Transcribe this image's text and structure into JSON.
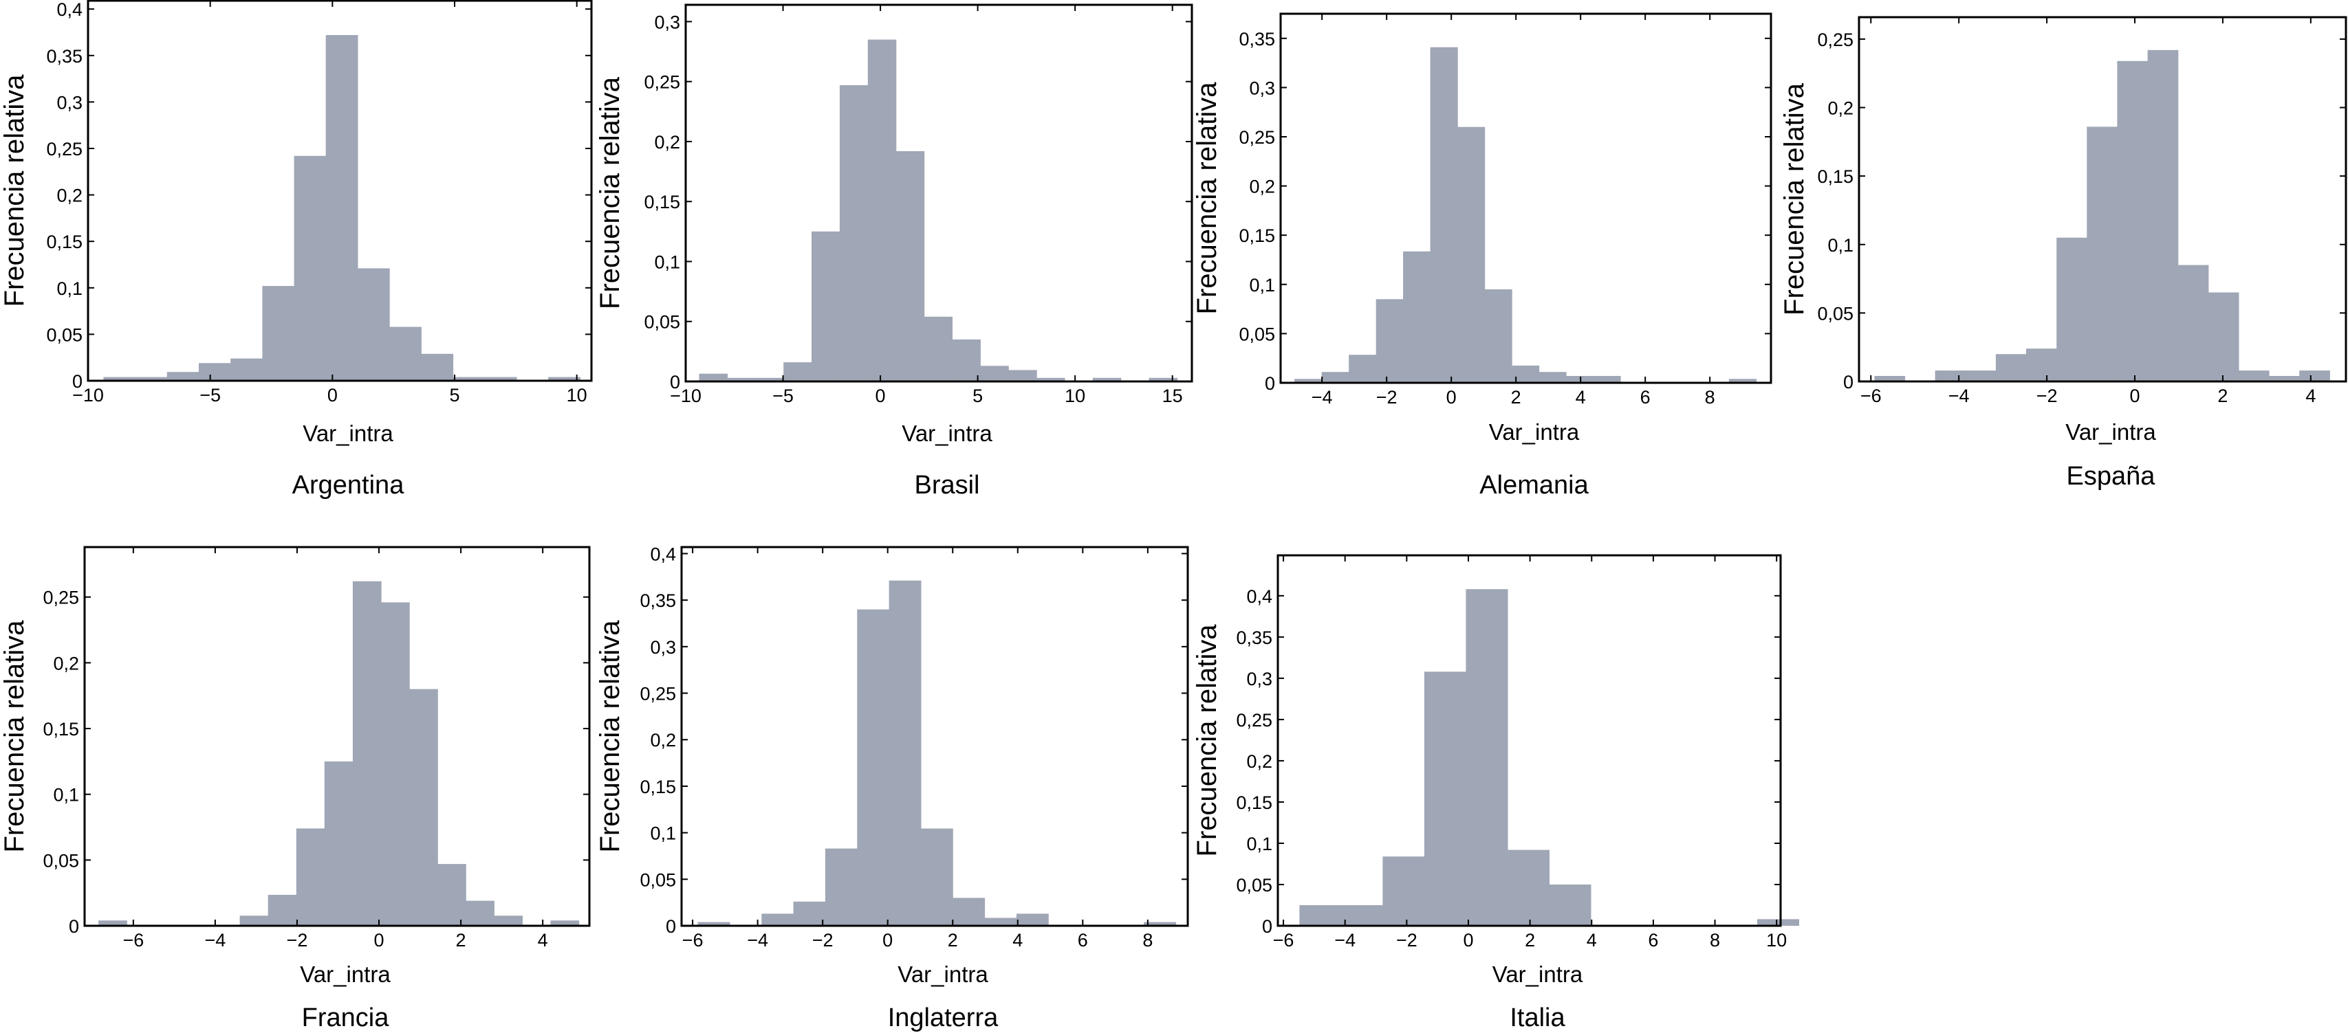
{
  "figure": {
    "bar_color": "#9fa6b5",
    "axis_color": "#000000",
    "decimal_separator": ","
  },
  "chart_data": [
    {
      "type": "bar",
      "subtype": "histogram",
      "title": "Argentina",
      "xlabel": "Var_intra",
      "ylabel": "Frecuencia relativa",
      "xlim": [
        -10,
        10.6
      ],
      "ylim": [
        0,
        0.409
      ],
      "xticks": [
        -10,
        -5,
        0,
        5,
        10
      ],
      "xtick_labels": [
        "−10",
        "−5",
        "0",
        "5",
        "10"
      ],
      "yticks": [
        0,
        0.05,
        0.1,
        0.15,
        0.2,
        0.25,
        0.3,
        0.35,
        0.4
      ],
      "ytick_labels": [
        "0",
        "0,05",
        "0,1",
        "0,15",
        "0,2",
        "0,25",
        "0,3",
        "0,35",
        "0,4"
      ],
      "bin_start": -9.37,
      "bin_width": 1.3,
      "values": [
        0.004,
        0.004,
        0.0095,
        0.019,
        0.024,
        0.102,
        0.242,
        0.372,
        0.121,
        0.058,
        0.029,
        0.004,
        0.004,
        0,
        0.004
      ]
    },
    {
      "type": "bar",
      "subtype": "histogram",
      "title": "Brasil",
      "xlabel": "Var_intra",
      "ylabel": "Frecuencia relativa",
      "xlim": [
        -10,
        16.0
      ],
      "ylim": [
        0,
        0.314
      ],
      "xticks": [
        -10,
        -5,
        0,
        5,
        10,
        15
      ],
      "xtick_labels": [
        "−10",
        "−5",
        "0",
        "5",
        "10",
        "15"
      ],
      "yticks": [
        0,
        0.05,
        0.1,
        0.15,
        0.2,
        0.25,
        0.3
      ],
      "ytick_labels": [
        "0",
        "0,05",
        "0,1",
        "0,15",
        "0,2",
        "0,25",
        "0,3"
      ],
      "bin_start": -9.31,
      "bin_width": 1.444,
      "values": [
        0.0065,
        0.003,
        0.003,
        0.016,
        0.125,
        0.247,
        0.285,
        0.192,
        0.054,
        0.035,
        0.013,
        0.0095,
        0.003,
        0,
        0.003,
        0,
        0.003
      ]
    },
    {
      "type": "bar",
      "subtype": "histogram",
      "title": "Alemania",
      "xlabel": "Var_intra",
      "ylabel": "Frecuencia relativa",
      "xlim": [
        -5.28,
        9.89
      ],
      "ylim": [
        0,
        0.375
      ],
      "xticks": [
        -4,
        -2,
        0,
        2,
        4,
        6,
        8
      ],
      "xtick_labels": [
        "−4",
        "−2",
        "0",
        "2",
        "4",
        "6",
        "8"
      ],
      "yticks": [
        0,
        0.05,
        0.1,
        0.15,
        0.2,
        0.25,
        0.3,
        0.35
      ],
      "ytick_labels": [
        "0",
        "0,05",
        "0,1",
        "0,15",
        "0,2",
        "0,25",
        "0,3",
        "0,35"
      ],
      "bin_start": -4.85,
      "bin_width": 0.84,
      "values": [
        0.004,
        0.011,
        0.0285,
        0.085,
        0.1335,
        0.341,
        0.26,
        0.095,
        0.0175,
        0.011,
        0.007,
        0.007,
        0,
        0,
        0,
        0,
        0.004
      ]
    },
    {
      "type": "bar",
      "subtype": "histogram",
      "title": "España",
      "xlabel": "Var_intra",
      "ylabel": "Frecuencia relativa",
      "xlim": [
        -6.27,
        4.8
      ],
      "ylim": [
        0,
        0.266
      ],
      "xticks": [
        -6,
        -4,
        -2,
        0,
        2,
        4
      ],
      "xtick_labels": [
        "−6",
        "−4",
        "−2",
        "0",
        "2",
        "4"
      ],
      "yticks": [
        0,
        0.05,
        0.1,
        0.15,
        0.2,
        0.25
      ],
      "ytick_labels": [
        "0",
        "0,05",
        "0,1",
        "0,15",
        "0,2",
        "0,25"
      ],
      "bin_start": -5.92,
      "bin_width": 0.69,
      "values": [
        0.004,
        0,
        0.008,
        0.008,
        0.02,
        0.024,
        0.105,
        0.186,
        0.234,
        0.242,
        0.085,
        0.065,
        0.008,
        0.004,
        0.008
      ]
    },
    {
      "type": "bar",
      "subtype": "histogram",
      "title": "Francia",
      "xlabel": "Var_intra",
      "ylabel": "Frecuencia relativa",
      "xlim": [
        -7.19,
        5.14
      ],
      "ylim": [
        0,
        0.288
      ],
      "xticks": [
        -6,
        -4,
        -2,
        0,
        2,
        4
      ],
      "xtick_labels": [
        "−6",
        "−4",
        "−2",
        "0",
        "2",
        "4"
      ],
      "yticks": [
        0,
        0.05,
        0.1,
        0.15,
        0.2,
        0.25
      ],
      "ytick_labels": [
        "0",
        "0,05",
        "0,1",
        "0,15",
        "0,2",
        "0,25"
      ],
      "bin_start": -6.85,
      "bin_width": 0.69,
      "values": [
        0.004,
        0,
        0,
        0,
        0,
        0.0077,
        0.0235,
        0.074,
        0.125,
        0.262,
        0.246,
        0.18,
        0.047,
        0.019,
        0.0077,
        0,
        0.004
      ]
    },
    {
      "type": "bar",
      "subtype": "histogram",
      "title": "Inglaterra",
      "xlabel": "Var_intra",
      "ylabel": "Frecuencia relativa",
      "xlim": [
        -6.34,
        9.23
      ],
      "ylim": [
        0,
        0.407
      ],
      "xticks": [
        -6,
        -4,
        -2,
        0,
        2,
        4,
        6,
        8
      ],
      "xtick_labels": [
        "−6",
        "−4",
        "−2",
        "0",
        "2",
        "4",
        "6",
        "8"
      ],
      "yticks": [
        0,
        0.05,
        0.1,
        0.15,
        0.2,
        0.25,
        0.3,
        0.35,
        0.4
      ],
      "ytick_labels": [
        "0",
        "0,05",
        "0,1",
        "0,15",
        "0,2",
        "0,25",
        "0,3",
        "0,35",
        "0,4"
      ],
      "bin_start": -5.84,
      "bin_width": 0.98,
      "values": [
        0.004,
        0,
        0.013,
        0.026,
        0.083,
        0.34,
        0.371,
        0.1045,
        0.03,
        0.0085,
        0.013,
        0,
        0,
        0,
        0.004
      ]
    },
    {
      "type": "bar",
      "subtype": "histogram",
      "title": "Italia",
      "xlabel": "Var_intra",
      "ylabel": "Frecuencia relativa",
      "xlim": [
        -6.18,
        10.13
      ],
      "ylim": [
        0,
        0.449
      ],
      "xticks": [
        -6,
        -4,
        -2,
        0,
        2,
        4,
        6,
        8,
        10
      ],
      "xtick_labels": [
        "−6",
        "−4",
        "−2",
        "0",
        "2",
        "4",
        "6",
        "8",
        "10"
      ],
      "yticks": [
        0,
        0.05,
        0.1,
        0.15,
        0.2,
        0.25,
        0.3,
        0.35,
        0.4
      ],
      "ytick_labels": [
        "0",
        "0,05",
        "0,1",
        "0,15",
        "0,2",
        "0,25",
        "0,3",
        "0,35",
        "0,4"
      ],
      "bin_start": -5.48,
      "bin_width": 1.35,
      "values": [
        0.025,
        0.025,
        0.084,
        0.308,
        0.408,
        0.092,
        0.05,
        0,
        0,
        0,
        0,
        0.008
      ]
    }
  ]
}
